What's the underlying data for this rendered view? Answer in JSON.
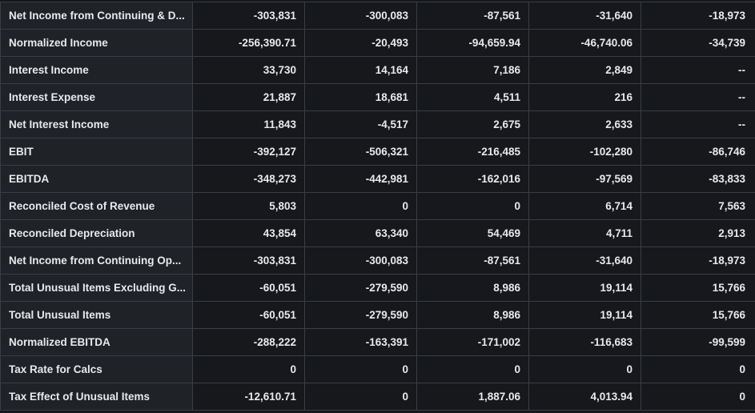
{
  "table": {
    "rows": [
      {
        "label": "Net Income from Continuing & D...",
        "values": [
          "-303,831",
          "-300,083",
          "-87,561",
          "-31,640",
          "-18,973"
        ]
      },
      {
        "label": "Normalized Income",
        "values": [
          "-256,390.71",
          "-20,493",
          "-94,659.94",
          "-46,740.06",
          "-34,739"
        ]
      },
      {
        "label": "Interest Income",
        "values": [
          "33,730",
          "14,164",
          "7,186",
          "2,849",
          "--"
        ]
      },
      {
        "label": "Interest Expense",
        "values": [
          "21,887",
          "18,681",
          "4,511",
          "216",
          "--"
        ]
      },
      {
        "label": "Net Interest Income",
        "values": [
          "11,843",
          "-4,517",
          "2,675",
          "2,633",
          "--"
        ]
      },
      {
        "label": "EBIT",
        "values": [
          "-392,127",
          "-506,321",
          "-216,485",
          "-102,280",
          "-86,746"
        ]
      },
      {
        "label": "EBITDA",
        "values": [
          "-348,273",
          "-442,981",
          "-162,016",
          "-97,569",
          "-83,833"
        ]
      },
      {
        "label": "Reconciled Cost of Revenue",
        "values": [
          "5,803",
          "0",
          "0",
          "6,714",
          "7,563"
        ]
      },
      {
        "label": "Reconciled Depreciation",
        "values": [
          "43,854",
          "63,340",
          "54,469",
          "4,711",
          "2,913"
        ]
      },
      {
        "label": "Net Income from Continuing Op...",
        "values": [
          "-303,831",
          "-300,083",
          "-87,561",
          "-31,640",
          "-18,973"
        ]
      },
      {
        "label": "Total Unusual Items Excluding G...",
        "values": [
          "-60,051",
          "-279,590",
          "8,986",
          "19,114",
          "15,766"
        ]
      },
      {
        "label": "Total Unusual Items",
        "values": [
          "-60,051",
          "-279,590",
          "8,986",
          "19,114",
          "15,766"
        ]
      },
      {
        "label": "Normalized EBITDA",
        "values": [
          "-288,222",
          "-163,391",
          "-171,002",
          "-116,683",
          "-99,599"
        ]
      },
      {
        "label": "Tax Rate for Calcs",
        "values": [
          "0",
          "0",
          "0",
          "0",
          "0"
        ]
      },
      {
        "label": "Tax Effect of Unusual Items",
        "values": [
          "-12,610.71",
          "0",
          "1,887.06",
          "4,013.94",
          "0"
        ]
      }
    ]
  },
  "colors": {
    "background": "#15171b",
    "label_cell": "#1f2226",
    "value_cell": "#16181c",
    "border": "#3a3d44",
    "text": "#e8e9ec"
  }
}
